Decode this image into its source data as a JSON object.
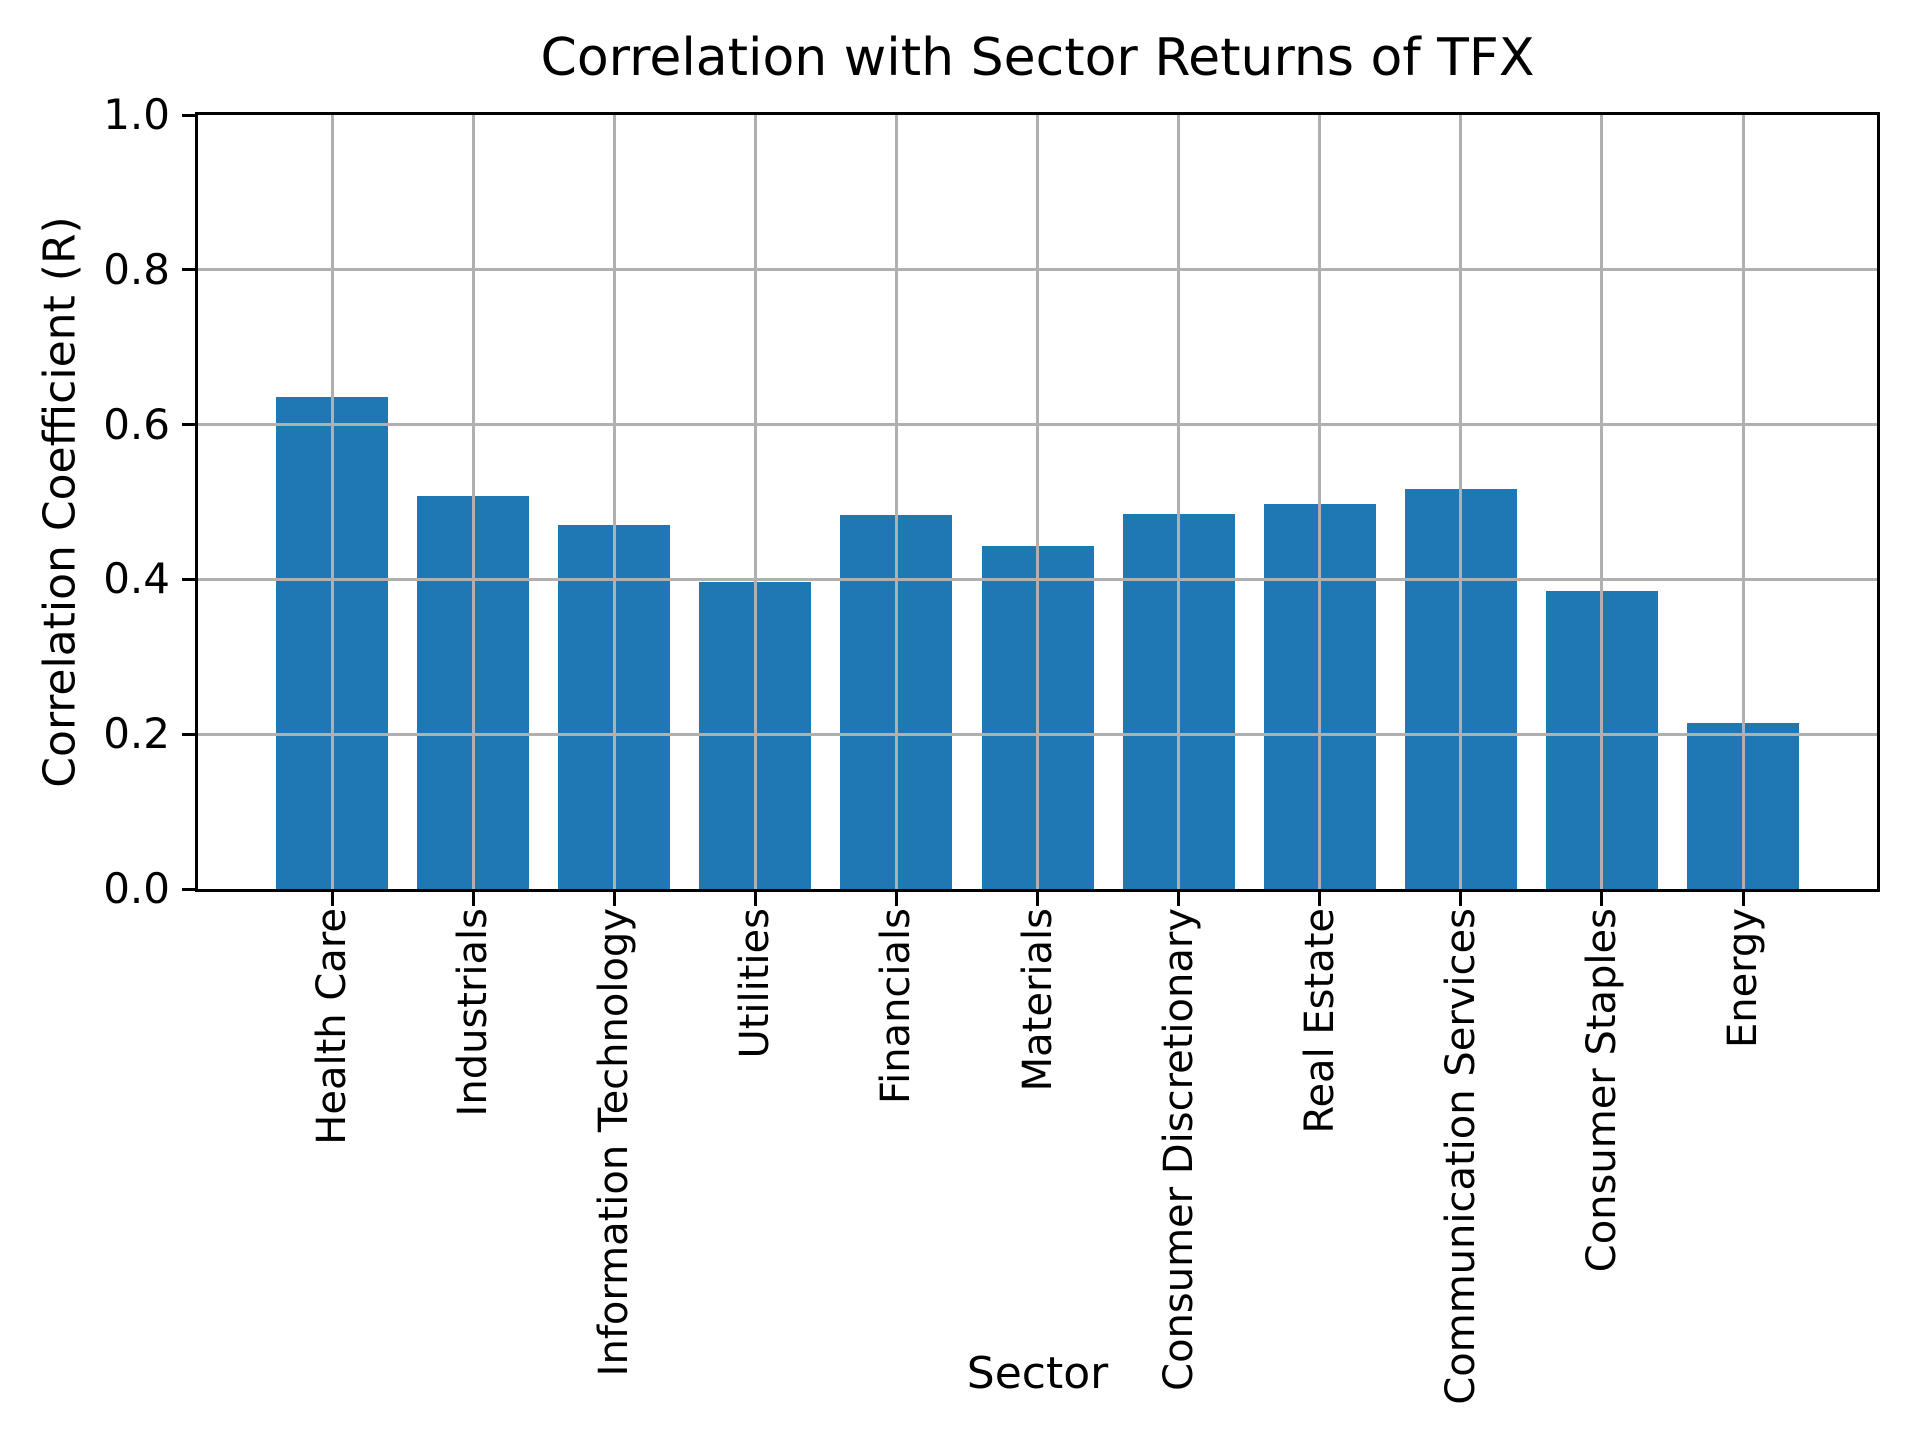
{
  "figure": {
    "background_color": "#ffffff",
    "text_color": "#000000"
  },
  "chart_data": {
    "type": "bar",
    "title": "Correlation with Sector Returns of TFX",
    "xlabel": "Sector",
    "ylabel": "Correlation Coefficient (R)",
    "categories": [
      "Health Care",
      "Industrials",
      "Information Technology",
      "Utilities",
      "Financials",
      "Materials",
      "Consumer Discretionary",
      "Real Estate",
      "Communication Services",
      "Consumer Staples",
      "Energy"
    ],
    "values": [
      0.636,
      0.508,
      0.47,
      0.397,
      0.483,
      0.443,
      0.484,
      0.498,
      0.517,
      0.385,
      0.214
    ],
    "ylim": [
      0.0,
      1.0
    ],
    "yticks": [
      0.0,
      0.2,
      0.4,
      0.6,
      0.8,
      1.0
    ],
    "grid": true,
    "legend": "none",
    "bar_color": "#1f77b4",
    "grid_color": "#b0b0b0",
    "axis_color": "#000000"
  }
}
